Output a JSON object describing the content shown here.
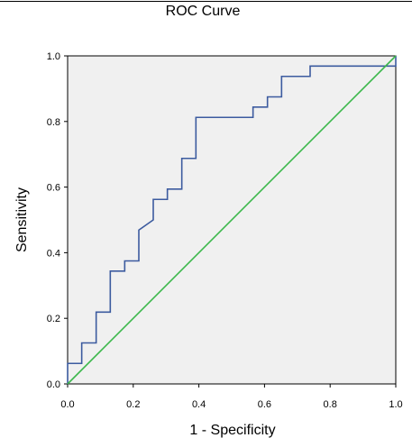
{
  "chart_data": {
    "type": "line",
    "title": "ROC Curve",
    "xlabel": "1 - Specificity",
    "ylabel": "Sensitivity",
    "xlim": [
      0.0,
      1.0
    ],
    "ylim": [
      0.0,
      1.0
    ],
    "x_ticks": [
      "0.0",
      "0.2",
      "0.4",
      "0.6",
      "0.8",
      "1.0"
    ],
    "y_ticks": [
      "0.0",
      "0.2",
      "0.4",
      "0.6",
      "0.8",
      "1.0"
    ],
    "x_tick_values": [
      0.0,
      0.2,
      0.4,
      0.6,
      0.8,
      1.0
    ],
    "y_tick_values": [
      0.0,
      0.2,
      0.4,
      0.6,
      0.8,
      1.0
    ],
    "grid": false,
    "plot_background": "#f0f0f0",
    "series": [
      {
        "color": "#3c5b9f",
        "step": true,
        "x": [
          0.0,
          0.0,
          0.043,
          0.043,
          0.087,
          0.087,
          0.13,
          0.13,
          0.174,
          0.174,
          0.217,
          0.217,
          0.261,
          0.261,
          0.304,
          0.304,
          0.348,
          0.348,
          0.391,
          0.391,
          0.565,
          0.565,
          0.609,
          0.609,
          0.652,
          0.652,
          0.739,
          0.739,
          1.0,
          1.0
        ],
        "y": [
          0.0,
          0.0625,
          0.0625,
          0.125,
          0.125,
          0.219,
          0.219,
          0.344,
          0.344,
          0.375,
          0.375,
          0.469,
          0.5,
          0.5625,
          0.5625,
          0.594,
          0.594,
          0.6875,
          0.6875,
          0.8125,
          0.8125,
          0.844,
          0.844,
          0.875,
          0.875,
          0.9375,
          0.9375,
          0.969,
          0.969,
          1.0
        ]
      },
      {
        "color": "#3cb84c",
        "x": [
          0.0,
          1.0
        ],
        "y": [
          0.0,
          1.0
        ]
      }
    ]
  }
}
